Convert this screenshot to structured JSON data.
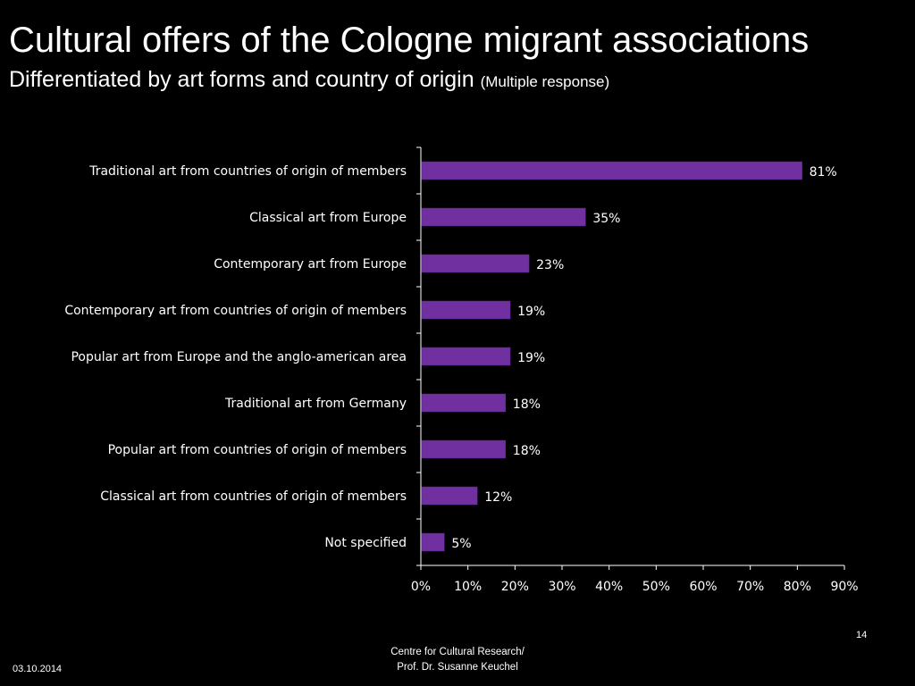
{
  "slide": {
    "title": "Cultural offers of the Cologne migrant associations",
    "subtitle": "Differentiated by art forms and country of origin",
    "subtitle_note": "(Multiple response)",
    "page_number": "14",
    "footer_line1": "Centre for Cultural Research/",
    "footer_line2": "Prof. Dr. Susanne Keuchel",
    "date": "03.10.2014"
  },
  "colors": {
    "background": "#000000",
    "bar": "#7030a0",
    "text": "#ffffff",
    "axis": "#ffffff"
  },
  "chart_data": {
    "type": "bar",
    "orientation": "horizontal",
    "categories": [
      "Traditional art from countries of origin of members",
      "Classical art from Europe",
      "Contemporary art from Europe",
      "Contemporary art from countries of origin of members",
      "Popular art from Europe and the anglo-american area",
      "Traditional art from Germany",
      "Popular art from countries of origin of members",
      "Classical art from countries of origin of members",
      "Not specified"
    ],
    "values": [
      81,
      35,
      23,
      19,
      19,
      18,
      18,
      12,
      5
    ],
    "value_labels": [
      "81%",
      "35%",
      "23%",
      "19%",
      "19%",
      "18%",
      "18%",
      "12%",
      "5%"
    ],
    "xlim": [
      0,
      90
    ],
    "xticks": [
      0,
      10,
      20,
      30,
      40,
      50,
      60,
      70,
      80,
      90
    ],
    "xtick_labels": [
      "0%",
      "10%",
      "20%",
      "30%",
      "40%",
      "50%",
      "60%",
      "70%",
      "80%",
      "90%"
    ],
    "grid": false,
    "legend": "none"
  }
}
